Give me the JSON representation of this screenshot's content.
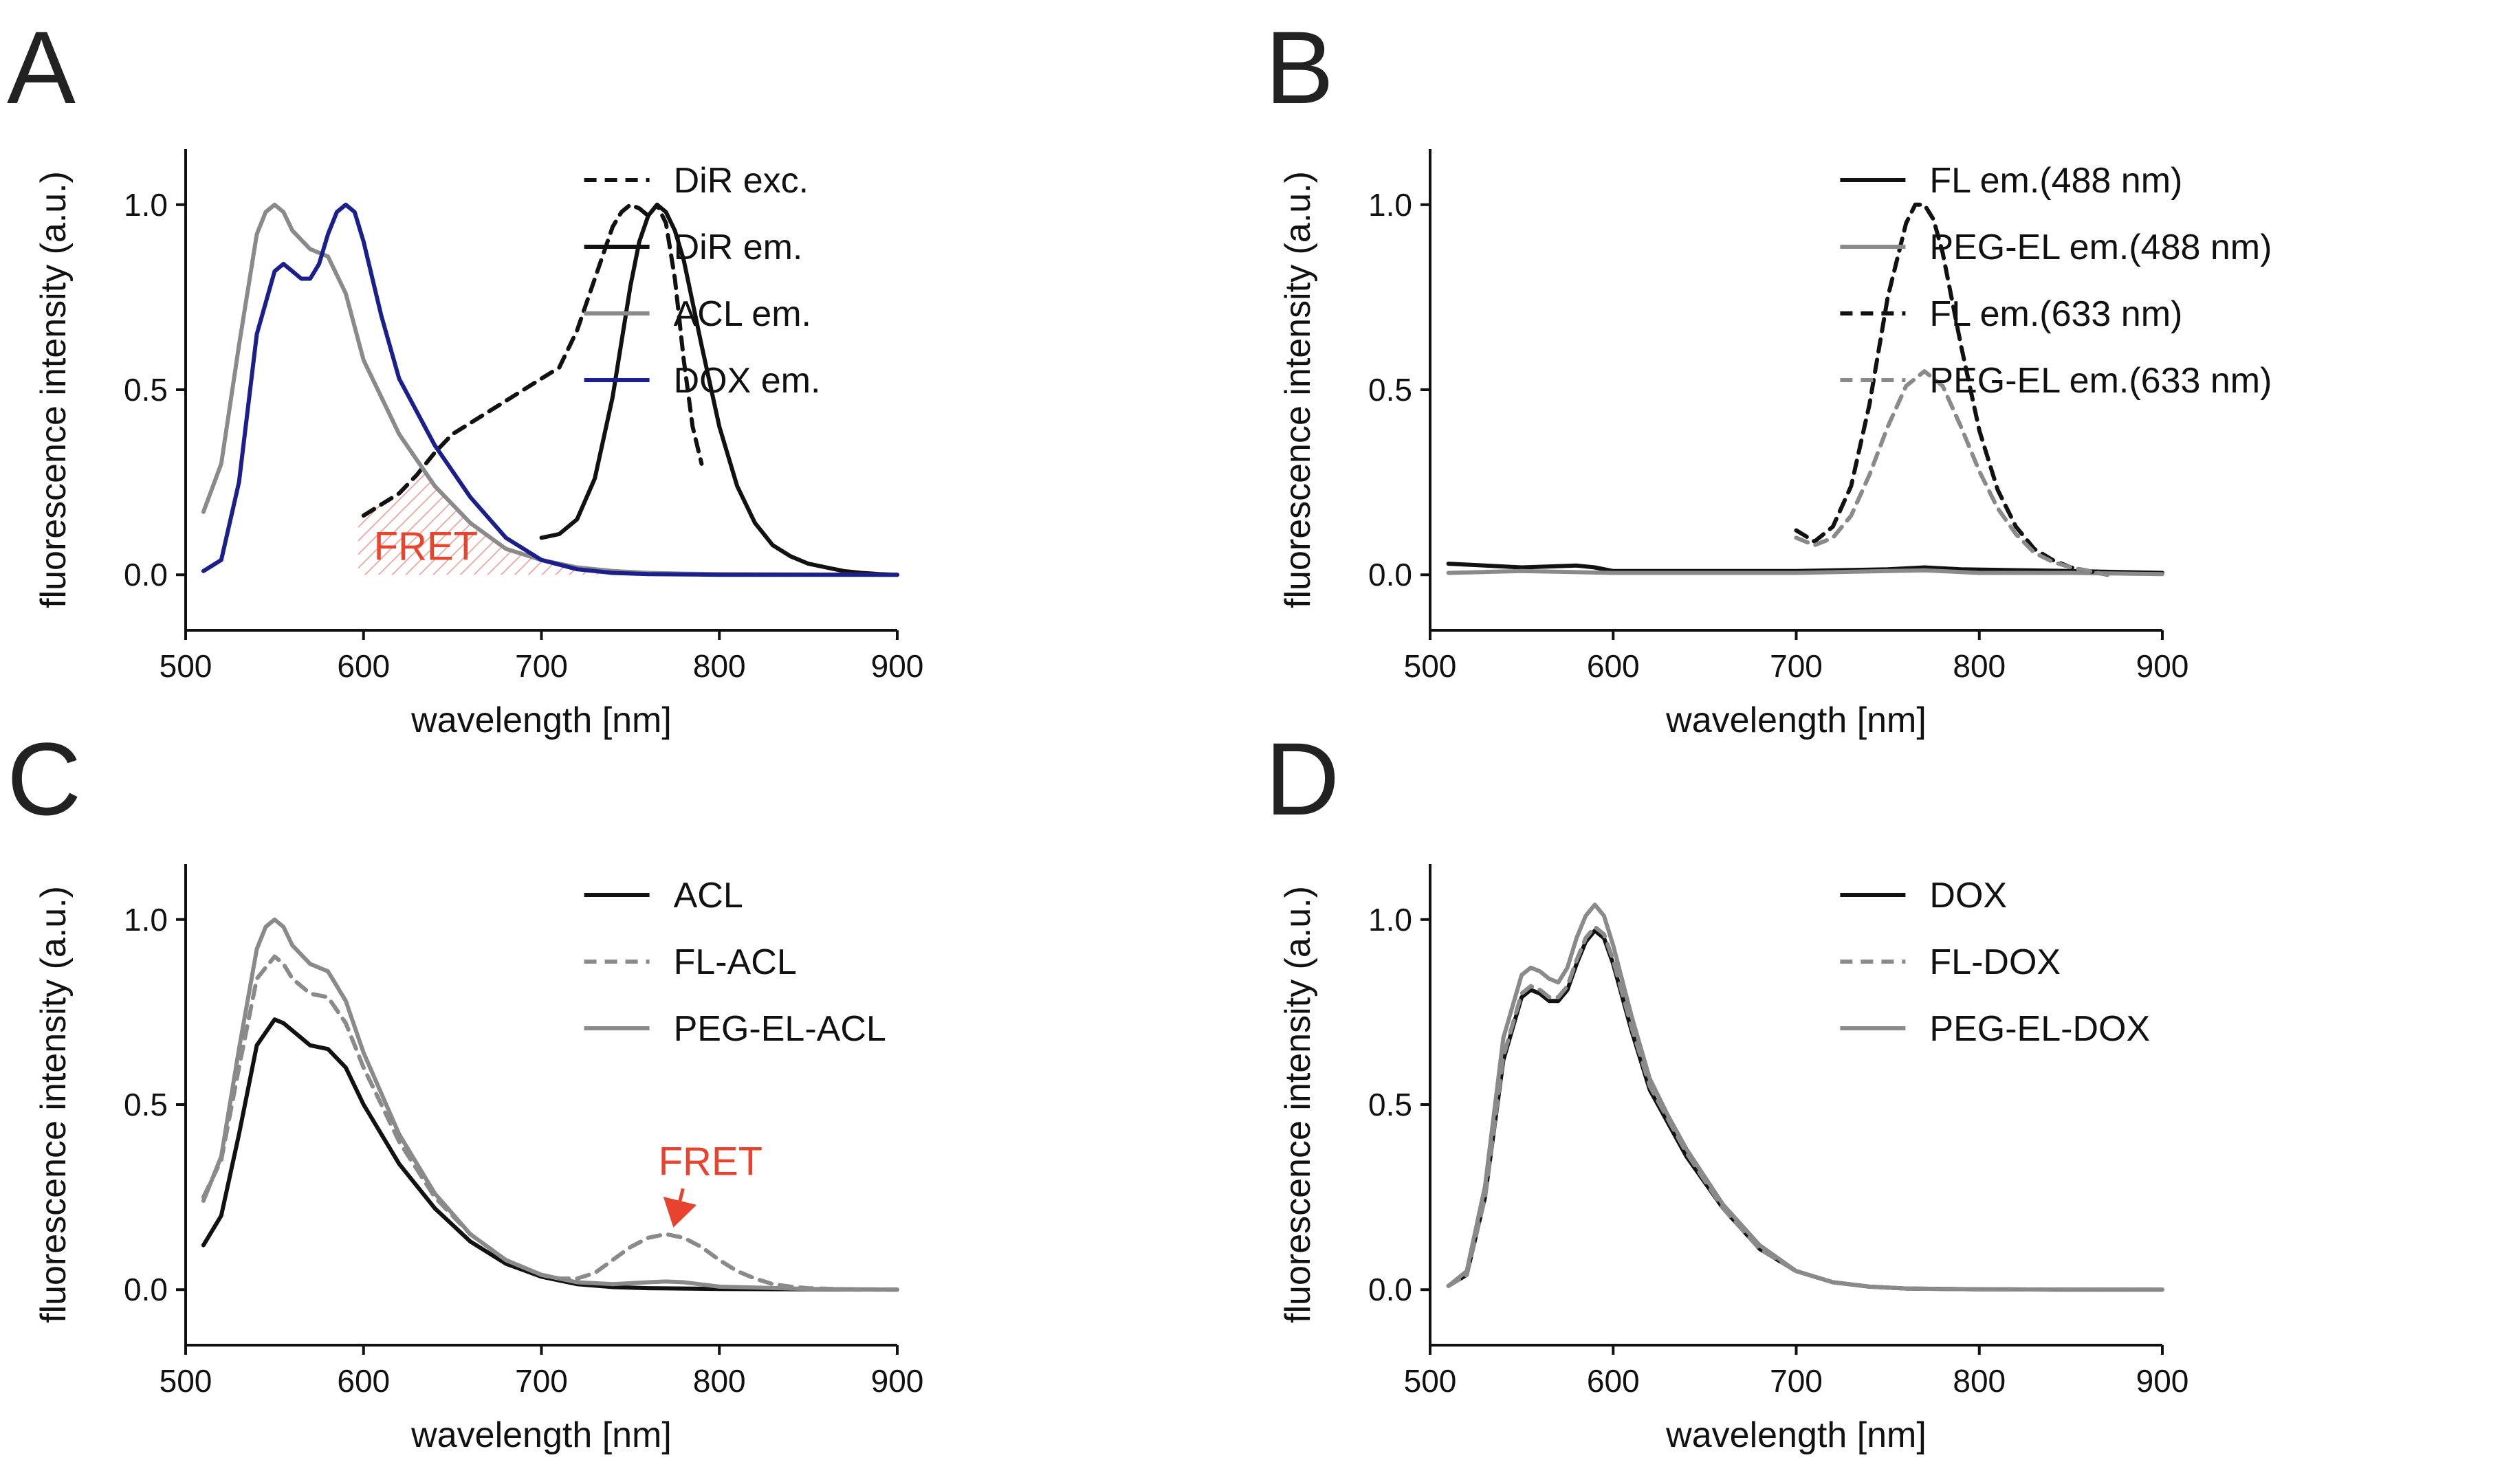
{
  "figure": {
    "panels": [
      {
        "id": "A",
        "letter": "A"
      },
      {
        "id": "B",
        "letter": "B"
      },
      {
        "id": "C",
        "letter": "C"
      },
      {
        "id": "D",
        "letter": "D"
      }
    ]
  },
  "colors": {
    "black": "#111111",
    "gray": "#8a8a8a",
    "blue": "#1b1f8c",
    "red": "#e8432e"
  },
  "chart_data": [
    {
      "panel": "A",
      "type": "line",
      "xlabel": "wavelength [nm]",
      "ylabel": "fluorescence intensity (a.u.)",
      "xlim": [
        500,
        900
      ],
      "ylim": [
        -0.15,
        1.15
      ],
      "xticks": [
        500,
        600,
        700,
        800,
        900
      ],
      "yticks": [
        0.0,
        0.5,
        1.0
      ],
      "xtick_labels": [
        "500",
        "600",
        "700",
        "800",
        "900"
      ],
      "ytick_labels": [
        "0.0",
        "0.5",
        "1.0"
      ],
      "legend_position": "top-right",
      "series": [
        {
          "name": "DiR exc.",
          "color": "#111111",
          "dash": true,
          "x": [
            600,
            610,
            620,
            630,
            640,
            650,
            660,
            670,
            680,
            690,
            700,
            710,
            720,
            730,
            740,
            745,
            750,
            755,
            760,
            765,
            770,
            775,
            780,
            785,
            790
          ],
          "y": [
            0.16,
            0.19,
            0.22,
            0.27,
            0.33,
            0.38,
            0.41,
            0.44,
            0.47,
            0.5,
            0.53,
            0.56,
            0.66,
            0.8,
            0.94,
            0.98,
            1.0,
            0.99,
            0.97,
            1.0,
            0.95,
            0.8,
            0.58,
            0.4,
            0.3
          ]
        },
        {
          "name": "DiR em.",
          "color": "#111111",
          "dash": false,
          "x": [
            700,
            710,
            720,
            730,
            740,
            750,
            755,
            760,
            765,
            770,
            775,
            780,
            790,
            800,
            810,
            820,
            830,
            840,
            850,
            860,
            870,
            880,
            890,
            900
          ],
          "y": [
            0.1,
            0.11,
            0.15,
            0.26,
            0.48,
            0.78,
            0.9,
            0.97,
            1.0,
            0.98,
            0.93,
            0.85,
            0.62,
            0.4,
            0.24,
            0.14,
            0.08,
            0.05,
            0.03,
            0.02,
            0.01,
            0.005,
            0.002,
            0.0
          ]
        },
        {
          "name": "ACL em.",
          "color": "#8a8a8a",
          "dash": false,
          "x": [
            510,
            520,
            530,
            540,
            545,
            550,
            555,
            560,
            570,
            580,
            590,
            600,
            620,
            640,
            660,
            680,
            700,
            720,
            740,
            760,
            780,
            800,
            850,
            900
          ],
          "y": [
            0.17,
            0.3,
            0.62,
            0.92,
            0.98,
            1.0,
            0.98,
            0.93,
            0.88,
            0.86,
            0.76,
            0.58,
            0.38,
            0.24,
            0.14,
            0.07,
            0.04,
            0.02,
            0.01,
            0.005,
            0.003,
            0.002,
            0.001,
            0.0
          ]
        },
        {
          "name": "DOX em.",
          "color": "#1b1f8c",
          "dash": false,
          "x": [
            510,
            520,
            530,
            540,
            550,
            555,
            560,
            565,
            570,
            575,
            580,
            585,
            590,
            595,
            600,
            610,
            620,
            630,
            640,
            660,
            680,
            700,
            720,
            740,
            760,
            800,
            850,
            900
          ],
          "y": [
            0.01,
            0.04,
            0.25,
            0.65,
            0.82,
            0.84,
            0.82,
            0.8,
            0.8,
            0.84,
            0.92,
            0.98,
            1.0,
            0.98,
            0.9,
            0.7,
            0.53,
            0.44,
            0.35,
            0.21,
            0.1,
            0.04,
            0.015,
            0.005,
            0.002,
            0.0,
            0.0,
            0.0
          ]
        }
      ],
      "annotations": [
        {
          "text": "FRET",
          "kind": "hatched-overlap",
          "x_range": [
            597,
            740
          ],
          "color": "#e8432e",
          "label_x": 635,
          "label_y": 0.04
        }
      ]
    },
    {
      "panel": "B",
      "type": "line",
      "xlabel": "wavelength [nm]",
      "ylabel": "fluorescence intensity (a.u.)",
      "xlim": [
        500,
        900
      ],
      "ylim": [
        -0.15,
        1.15
      ],
      "xticks": [
        500,
        600,
        700,
        800,
        900
      ],
      "yticks": [
        0.0,
        0.5,
        1.0
      ],
      "xtick_labels": [
        "500",
        "600",
        "700",
        "800",
        "900"
      ],
      "ytick_labels": [
        "0.0",
        "0.5",
        "1.0"
      ],
      "legend_position": "top-right",
      "series": [
        {
          "name": "FL em.(488 nm)",
          "color": "#111111",
          "dash": false,
          "x": [
            510,
            550,
            580,
            590,
            600,
            650,
            700,
            750,
            770,
            790,
            850,
            900
          ],
          "y": [
            0.03,
            0.02,
            0.025,
            0.02,
            0.01,
            0.01,
            0.01,
            0.015,
            0.02,
            0.015,
            0.01,
            0.005
          ]
        },
        {
          "name": "PEG-EL em.(488 nm)",
          "color": "#8a8a8a",
          "dash": false,
          "x": [
            510,
            550,
            600,
            650,
            700,
            750,
            770,
            800,
            850,
            900
          ],
          "y": [
            0.005,
            0.01,
            0.005,
            0.005,
            0.005,
            0.01,
            0.012,
            0.005,
            0.005,
            0.002
          ]
        },
        {
          "name": "FL em.(633 nm)",
          "color": "#111111",
          "dash": true,
          "x": [
            700,
            710,
            720,
            730,
            740,
            750,
            760,
            765,
            770,
            775,
            780,
            790,
            800,
            810,
            820,
            830,
            840,
            850,
            860,
            870
          ],
          "y": [
            0.12,
            0.09,
            0.13,
            0.24,
            0.46,
            0.75,
            0.95,
            1.0,
            1.0,
            0.96,
            0.87,
            0.62,
            0.39,
            0.23,
            0.13,
            0.07,
            0.04,
            0.02,
            0.01,
            0.0
          ]
        },
        {
          "name": "PEG-EL em.(633 nm)",
          "color": "#8a8a8a",
          "dash": true,
          "x": [
            700,
            710,
            720,
            730,
            740,
            750,
            760,
            770,
            780,
            790,
            800,
            810,
            820,
            830,
            840,
            850,
            860,
            870
          ],
          "y": [
            0.1,
            0.08,
            0.1,
            0.16,
            0.27,
            0.4,
            0.51,
            0.55,
            0.51,
            0.4,
            0.28,
            0.18,
            0.11,
            0.06,
            0.035,
            0.02,
            0.01,
            0.0
          ]
        }
      ]
    },
    {
      "panel": "C",
      "type": "line",
      "xlabel": "wavelength [nm]",
      "ylabel": "fluorescence intensity (a.u.)",
      "xlim": [
        500,
        900
      ],
      "ylim": [
        -0.15,
        1.15
      ],
      "xticks": [
        500,
        600,
        700,
        800,
        900
      ],
      "yticks": [
        0.0,
        0.5,
        1.0
      ],
      "xtick_labels": [
        "500",
        "600",
        "700",
        "800",
        "900"
      ],
      "ytick_labels": [
        "0.0",
        "0.5",
        "1.0"
      ],
      "legend_position": "top-right",
      "series": [
        {
          "name": "ACL",
          "color": "#111111",
          "dash": false,
          "x": [
            510,
            520,
            530,
            540,
            550,
            555,
            560,
            570,
            580,
            590,
            600,
            620,
            640,
            660,
            680,
            700,
            720,
            740,
            760,
            780,
            800,
            850,
            900
          ],
          "y": [
            0.12,
            0.2,
            0.42,
            0.66,
            0.73,
            0.72,
            0.7,
            0.66,
            0.65,
            0.6,
            0.5,
            0.34,
            0.22,
            0.13,
            0.07,
            0.035,
            0.015,
            0.007,
            0.004,
            0.003,
            0.002,
            0.001,
            0.0
          ]
        },
        {
          "name": "FL-ACL",
          "color": "#8a8a8a",
          "dash": true,
          "x": [
            510,
            520,
            530,
            540,
            550,
            555,
            560,
            570,
            580,
            590,
            600,
            620,
            640,
            660,
            680,
            700,
            710,
            720,
            730,
            740,
            750,
            760,
            770,
            780,
            790,
            800,
            810,
            820,
            830,
            840,
            850,
            870,
            900
          ],
          "y": [
            0.25,
            0.35,
            0.6,
            0.84,
            0.9,
            0.88,
            0.84,
            0.8,
            0.79,
            0.72,
            0.6,
            0.4,
            0.25,
            0.15,
            0.08,
            0.04,
            0.03,
            0.03,
            0.045,
            0.08,
            0.115,
            0.14,
            0.15,
            0.14,
            0.115,
            0.08,
            0.05,
            0.03,
            0.015,
            0.008,
            0.004,
            0.001,
            0.0
          ]
        },
        {
          "name": "PEG-EL-ACL",
          "color": "#8a8a8a",
          "dash": false,
          "x": [
            510,
            520,
            530,
            540,
            545,
            550,
            555,
            560,
            570,
            580,
            590,
            600,
            620,
            640,
            660,
            680,
            700,
            720,
            740,
            760,
            770,
            780,
            800,
            850,
            900
          ],
          "y": [
            0.24,
            0.36,
            0.65,
            0.92,
            0.98,
            1.0,
            0.98,
            0.93,
            0.88,
            0.86,
            0.78,
            0.64,
            0.42,
            0.26,
            0.15,
            0.08,
            0.04,
            0.02,
            0.015,
            0.02,
            0.022,
            0.02,
            0.008,
            0.002,
            0.0
          ]
        }
      ],
      "annotations": [
        {
          "text": "FRET",
          "kind": "arrow",
          "color": "#e8432e",
          "label_x": 795,
          "label_y": 0.31,
          "target_x": 772,
          "target_y": 0.16
        }
      ]
    },
    {
      "panel": "D",
      "type": "line",
      "xlabel": "wavelength [nm]",
      "ylabel": "fluorescence intensity (a.u.)",
      "xlim": [
        500,
        900
      ],
      "ylim": [
        -0.15,
        1.15
      ],
      "xticks": [
        500,
        600,
        700,
        800,
        900
      ],
      "yticks": [
        0.0,
        0.5,
        1.0
      ],
      "xtick_labels": [
        "500",
        "600",
        "700",
        "800",
        "900"
      ],
      "ytick_labels": [
        "0.0",
        "0.5",
        "1.0"
      ],
      "legend_position": "top-right",
      "series": [
        {
          "name": "DOX",
          "color": "#111111",
          "dash": false,
          "x": [
            510,
            520,
            530,
            540,
            550,
            555,
            560,
            565,
            570,
            575,
            580,
            585,
            590,
            595,
            600,
            610,
            620,
            630,
            640,
            660,
            680,
            700,
            720,
            740,
            760,
            800,
            850,
            900
          ],
          "y": [
            0.01,
            0.04,
            0.25,
            0.62,
            0.79,
            0.81,
            0.8,
            0.78,
            0.78,
            0.81,
            0.88,
            0.94,
            0.97,
            0.95,
            0.88,
            0.7,
            0.54,
            0.45,
            0.36,
            0.22,
            0.11,
            0.05,
            0.02,
            0.008,
            0.003,
            0.001,
            0.0,
            0.0
          ]
        },
        {
          "name": "FL-DOX",
          "color": "#8a8a8a",
          "dash": true,
          "x": [
            510,
            520,
            530,
            540,
            550,
            555,
            560,
            565,
            570,
            575,
            580,
            585,
            590,
            595,
            600,
            610,
            620,
            630,
            640,
            660,
            680,
            700,
            720,
            740,
            760,
            800,
            850,
            900
          ],
          "y": [
            0.01,
            0.04,
            0.25,
            0.63,
            0.8,
            0.82,
            0.81,
            0.79,
            0.79,
            0.82,
            0.89,
            0.95,
            0.98,
            0.96,
            0.89,
            0.71,
            0.55,
            0.46,
            0.37,
            0.22,
            0.11,
            0.05,
            0.02,
            0.008,
            0.003,
            0.001,
            0.0,
            0.0
          ]
        },
        {
          "name": "PEG-EL-DOX",
          "color": "#8a8a8a",
          "dash": false,
          "x": [
            510,
            520,
            530,
            540,
            550,
            555,
            560,
            565,
            570,
            575,
            580,
            585,
            590,
            595,
            600,
            610,
            620,
            630,
            640,
            660,
            680,
            700,
            720,
            740,
            760,
            800,
            850,
            900
          ],
          "y": [
            0.01,
            0.05,
            0.28,
            0.68,
            0.85,
            0.87,
            0.86,
            0.84,
            0.83,
            0.87,
            0.95,
            1.01,
            1.04,
            1.01,
            0.93,
            0.74,
            0.57,
            0.47,
            0.38,
            0.23,
            0.12,
            0.05,
            0.02,
            0.008,
            0.003,
            0.001,
            0.0,
            0.0
          ]
        }
      ]
    }
  ]
}
